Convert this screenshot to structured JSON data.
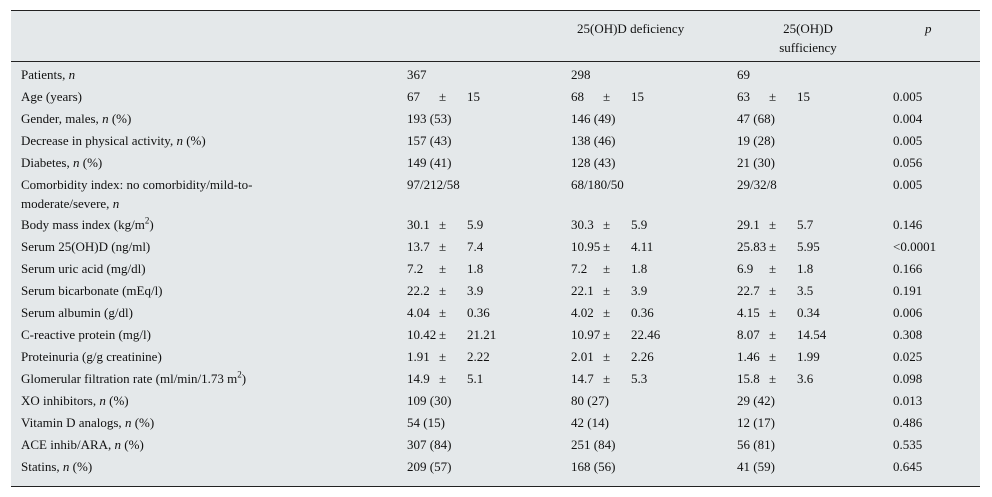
{
  "headers": {
    "deficiency": "25(OH)D deficiency",
    "sufficiency_line1": "25(OH)D",
    "sufficiency_line2": "sufficiency",
    "p": "p"
  },
  "rows": [
    {
      "pre": "Patients, ",
      "ital": "n",
      "post": "",
      "total": "367",
      "defi": "298",
      "suff": "69",
      "p": ""
    },
    {
      "pre": "Age (years)",
      "ital": "",
      "post": "",
      "total": [
        "67",
        "±",
        "15"
      ],
      "defi": [
        "68",
        "±",
        "15"
      ],
      "suff": [
        "63",
        "±",
        "15"
      ],
      "p": "0.005"
    },
    {
      "pre": "Gender, males, ",
      "ital": "n",
      "post": " (%)",
      "total": "193 (53)",
      "defi": "146 (49)",
      "suff": "47 (68)",
      "p": "0.004"
    },
    {
      "pre": "Decrease in physical activity, ",
      "ital": "n",
      "post": " (%)",
      "total": "157 (43)",
      "defi": "138 (46)",
      "suff": "19 (28)",
      "p": "0.005"
    },
    {
      "pre": "Diabetes, ",
      "ital": "n",
      "post": " (%)",
      "total": "149 (41)",
      "defi": "128 (43)",
      "suff": "21 (30)",
      "p": "0.056"
    },
    {
      "pre": "Comorbidity index: no comorbidity/mild-to-moderate/severe, ",
      "ital": "n",
      "post": "",
      "total": "97/212/58",
      "defi": "68/180/50",
      "suff": "29/32/8",
      "p": "0.005",
      "tall": true
    },
    {
      "pre": "Body mass index (kg/m",
      "sup": "2",
      "ital": "",
      "post": ")",
      "total": [
        "30.1",
        "±",
        "5.9"
      ],
      "defi": [
        "30.3",
        "±",
        "5.9"
      ],
      "suff": [
        "29.1",
        "±",
        "5.7"
      ],
      "p": "0.146"
    },
    {
      "pre": "Serum 25(OH)D (ng/ml)",
      "ital": "",
      "post": "",
      "total": [
        "13.7",
        "±",
        "7.4"
      ],
      "defi": [
        "10.95",
        "±",
        "4.11"
      ],
      "suff": [
        "25.83",
        "±",
        "5.95"
      ],
      "p": "<0.0001"
    },
    {
      "pre": "Serum uric acid (mg/dl)",
      "ital": "",
      "post": "",
      "total": [
        "7.2",
        "±",
        "1.8"
      ],
      "defi": [
        "7.2",
        "±",
        "1.8"
      ],
      "suff": [
        "6.9",
        "±",
        "1.8"
      ],
      "p": "0.166"
    },
    {
      "pre": "Serum bicarbonate (mEq/l)",
      "ital": "",
      "post": "",
      "total": [
        "22.2",
        "±",
        "3.9"
      ],
      "defi": [
        "22.1",
        "±",
        "3.9"
      ],
      "suff": [
        "22.7",
        "±",
        "3.5"
      ],
      "p": "0.191"
    },
    {
      "pre": "Serum albumin (g/dl)",
      "ital": "",
      "post": "",
      "total": [
        "4.04",
        "±",
        "0.36"
      ],
      "defi": [
        "4.02",
        "±",
        "0.36"
      ],
      "suff": [
        "4.15",
        "±",
        "0.34"
      ],
      "p": "0.006"
    },
    {
      "pre": "C-reactive protein (mg/l)",
      "ital": "",
      "post": "",
      "total": [
        "10.42",
        "±",
        "21.21"
      ],
      "defi": [
        "10.97",
        "±",
        "22.46"
      ],
      "suff": [
        "8.07",
        "±",
        "14.54"
      ],
      "p": "0.308"
    },
    {
      "pre": "Proteinuria (g/g creatinine)",
      "ital": "",
      "post": "",
      "total": [
        "1.91",
        "±",
        "2.22"
      ],
      "defi": [
        "2.01",
        "±",
        "2.26"
      ],
      "suff": [
        "1.46",
        "±",
        "1.99"
      ],
      "p": "0.025"
    },
    {
      "pre": "Glomerular filtration rate (ml/min/1.73     m",
      "sup": "2",
      "ital": "",
      "post": ")",
      "total": [
        "14.9",
        "±",
        "5.1"
      ],
      "defi": [
        "14.7",
        "±",
        "5.3"
      ],
      "suff": [
        "15.8",
        "±",
        "3.6"
      ],
      "p": "0.098"
    },
    {
      "pre": "XO inhibitors, ",
      "ital": "n",
      "post": " (%)",
      "total": "109 (30)",
      "defi": "80 (27)",
      "suff": "29 (42)",
      "p": "0.013"
    },
    {
      "pre": "Vitamin D analogs, ",
      "ital": "n",
      "post": " (%)",
      "total": "54 (15)",
      "defi": "42 (14)",
      "suff": "12 (17)",
      "p": "0.486"
    },
    {
      "pre": "ACE inhib/ARA, ",
      "ital": "n",
      "post": " (%)",
      "total": "307 (84)",
      "defi": "251 (84)",
      "suff": "56 (81)",
      "p": "0.535"
    },
    {
      "pre": "Statins, ",
      "ital": "n",
      "post": " (%)",
      "total": "209 (57)",
      "defi": "168 (56)",
      "suff": "41 (59)",
      "p": "0.645"
    }
  ]
}
